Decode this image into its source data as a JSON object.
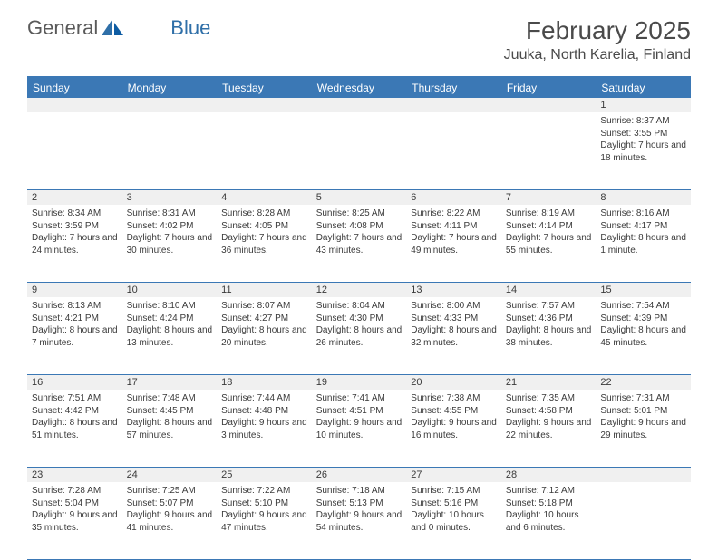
{
  "logo": {
    "text1": "General",
    "text2": "Blue"
  },
  "title": "February 2025",
  "location": "Juuka, North Karelia, Finland",
  "colors": {
    "header_bg": "#3b78b5",
    "header_text": "#ffffff",
    "strip_bg": "#f0f0f0",
    "text": "#3a3a3a",
    "border": "#3b78b5"
  },
  "day_headers": [
    "Sunday",
    "Monday",
    "Tuesday",
    "Wednesday",
    "Thursday",
    "Friday",
    "Saturday"
  ],
  "weeks": [
    [
      null,
      null,
      null,
      null,
      null,
      null,
      {
        "n": "1",
        "sunrise": "8:37 AM",
        "sunset": "3:55 PM",
        "daylight": "7 hours and 18 minutes."
      }
    ],
    [
      {
        "n": "2",
        "sunrise": "8:34 AM",
        "sunset": "3:59 PM",
        "daylight": "7 hours and 24 minutes."
      },
      {
        "n": "3",
        "sunrise": "8:31 AM",
        "sunset": "4:02 PM",
        "daylight": "7 hours and 30 minutes."
      },
      {
        "n": "4",
        "sunrise": "8:28 AM",
        "sunset": "4:05 PM",
        "daylight": "7 hours and 36 minutes."
      },
      {
        "n": "5",
        "sunrise": "8:25 AM",
        "sunset": "4:08 PM",
        "daylight": "7 hours and 43 minutes."
      },
      {
        "n": "6",
        "sunrise": "8:22 AM",
        "sunset": "4:11 PM",
        "daylight": "7 hours and 49 minutes."
      },
      {
        "n": "7",
        "sunrise": "8:19 AM",
        "sunset": "4:14 PM",
        "daylight": "7 hours and 55 minutes."
      },
      {
        "n": "8",
        "sunrise": "8:16 AM",
        "sunset": "4:17 PM",
        "daylight": "8 hours and 1 minute."
      }
    ],
    [
      {
        "n": "9",
        "sunrise": "8:13 AM",
        "sunset": "4:21 PM",
        "daylight": "8 hours and 7 minutes."
      },
      {
        "n": "10",
        "sunrise": "8:10 AM",
        "sunset": "4:24 PM",
        "daylight": "8 hours and 13 minutes."
      },
      {
        "n": "11",
        "sunrise": "8:07 AM",
        "sunset": "4:27 PM",
        "daylight": "8 hours and 20 minutes."
      },
      {
        "n": "12",
        "sunrise": "8:04 AM",
        "sunset": "4:30 PM",
        "daylight": "8 hours and 26 minutes."
      },
      {
        "n": "13",
        "sunrise": "8:00 AM",
        "sunset": "4:33 PM",
        "daylight": "8 hours and 32 minutes."
      },
      {
        "n": "14",
        "sunrise": "7:57 AM",
        "sunset": "4:36 PM",
        "daylight": "8 hours and 38 minutes."
      },
      {
        "n": "15",
        "sunrise": "7:54 AM",
        "sunset": "4:39 PM",
        "daylight": "8 hours and 45 minutes."
      }
    ],
    [
      {
        "n": "16",
        "sunrise": "7:51 AM",
        "sunset": "4:42 PM",
        "daylight": "8 hours and 51 minutes."
      },
      {
        "n": "17",
        "sunrise": "7:48 AM",
        "sunset": "4:45 PM",
        "daylight": "8 hours and 57 minutes."
      },
      {
        "n": "18",
        "sunrise": "7:44 AM",
        "sunset": "4:48 PM",
        "daylight": "9 hours and 3 minutes."
      },
      {
        "n": "19",
        "sunrise": "7:41 AM",
        "sunset": "4:51 PM",
        "daylight": "9 hours and 10 minutes."
      },
      {
        "n": "20",
        "sunrise": "7:38 AM",
        "sunset": "4:55 PM",
        "daylight": "9 hours and 16 minutes."
      },
      {
        "n": "21",
        "sunrise": "7:35 AM",
        "sunset": "4:58 PM",
        "daylight": "9 hours and 22 minutes."
      },
      {
        "n": "22",
        "sunrise": "7:31 AM",
        "sunset": "5:01 PM",
        "daylight": "9 hours and 29 minutes."
      }
    ],
    [
      {
        "n": "23",
        "sunrise": "7:28 AM",
        "sunset": "5:04 PM",
        "daylight": "9 hours and 35 minutes."
      },
      {
        "n": "24",
        "sunrise": "7:25 AM",
        "sunset": "5:07 PM",
        "daylight": "9 hours and 41 minutes."
      },
      {
        "n": "25",
        "sunrise": "7:22 AM",
        "sunset": "5:10 PM",
        "daylight": "9 hours and 47 minutes."
      },
      {
        "n": "26",
        "sunrise": "7:18 AM",
        "sunset": "5:13 PM",
        "daylight": "9 hours and 54 minutes."
      },
      {
        "n": "27",
        "sunrise": "7:15 AM",
        "sunset": "5:16 PM",
        "daylight": "10 hours and 0 minutes."
      },
      {
        "n": "28",
        "sunrise": "7:12 AM",
        "sunset": "5:18 PM",
        "daylight": "10 hours and 6 minutes."
      },
      null
    ]
  ],
  "labels": {
    "sunrise": "Sunrise:",
    "sunset": "Sunset:",
    "daylight": "Daylight:"
  }
}
